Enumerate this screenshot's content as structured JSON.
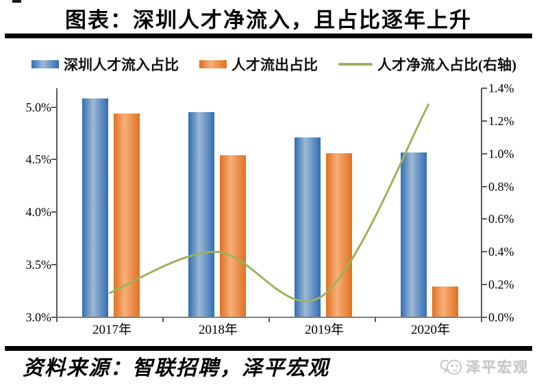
{
  "page": {
    "title": "图表：深圳人才净流入，且占比逐年上升",
    "source": "资料来源：智联招聘，泽平宏观",
    "watermark": "泽平宏观"
  },
  "chart_data": {
    "type": "bar+line",
    "title": "图表：深圳人才净流入，且占比逐年上升",
    "categories": [
      "2017年",
      "2018年",
      "2019年",
      "2020年"
    ],
    "series": [
      {
        "name": "深圳人才流入占比",
        "type": "bar",
        "axis": "left",
        "values": [
          5.08,
          4.95,
          4.71,
          4.57
        ],
        "color": "#2F6EB4",
        "color_light": "#9FB8D4"
      },
      {
        "name": "人才流出占比",
        "type": "bar",
        "axis": "left",
        "values": [
          4.94,
          4.54,
          4.56,
          3.29
        ],
        "color": "#E0701F",
        "color_light": "#F7B078"
      },
      {
        "name": "人才净流入占比(右轴)",
        "type": "line",
        "axis": "right",
        "values": [
          0.15,
          0.4,
          0.13,
          1.3
        ],
        "color": "#9BB35B"
      }
    ],
    "left_axis": {
      "min": 3.0,
      "max": 5.18,
      "ticks": [
        {
          "v": 3.0,
          "label": "3.0%"
        },
        {
          "v": 3.5,
          "label": "3.5%"
        },
        {
          "v": 4.0,
          "label": "4.0%"
        },
        {
          "v": 4.5,
          "label": "4.5%"
        },
        {
          "v": 5.0,
          "label": "5.0%"
        }
      ]
    },
    "right_axis": {
      "min": 0.0,
      "max": 1.4,
      "ticks": [
        {
          "v": 0.0,
          "label": "0.0%"
        },
        {
          "v": 0.2,
          "label": "0.2%"
        },
        {
          "v": 0.4,
          "label": "0.4%"
        },
        {
          "v": 0.6,
          "label": "0.6%"
        },
        {
          "v": 0.8,
          "label": "0.8%"
        },
        {
          "v": 1.0,
          "label": "1.0%"
        },
        {
          "v": 1.2,
          "label": "1.2%"
        },
        {
          "v": 1.4,
          "label": "1.4%"
        }
      ]
    },
    "grid": false,
    "legend_position": "top",
    "xlabel": "",
    "ylabel": ""
  },
  "colors": {
    "axis_line": "#595959",
    "x_axis_line": "#7F7F7F",
    "divider": "#000000",
    "text": "#000000",
    "watermark": "#C6C6C6"
  }
}
